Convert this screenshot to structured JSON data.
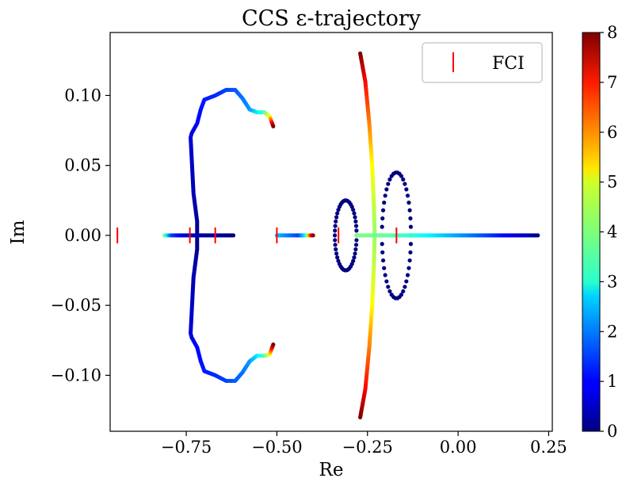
{
  "chart_data": {
    "type": "scatter",
    "title": "CCS ε-trajectory",
    "xlabel": "Re",
    "ylabel": "Im",
    "xlim": [
      -0.96,
      0.26
    ],
    "ylim": [
      -0.14,
      0.145
    ],
    "xticks": [
      {
        "value": -0.75,
        "label": "−0.75"
      },
      {
        "value": -0.5,
        "label": "−0.50"
      },
      {
        "value": -0.25,
        "label": "−0.25"
      },
      {
        "value": 0.0,
        "label": "0.00"
      },
      {
        "value": 0.25,
        "label": "0.25"
      }
    ],
    "yticks": [
      {
        "value": 0.1,
        "label": "0.10"
      },
      {
        "value": 0.05,
        "label": "0.05"
      },
      {
        "value": 0.0,
        "label": "0.00"
      },
      {
        "value": -0.05,
        "label": "−0.05"
      },
      {
        "value": -0.1,
        "label": "−0.10"
      }
    ],
    "grid": false,
    "legend": {
      "placement": "top-right",
      "entries": [
        {
          "name": "FCI",
          "marker": "red vertical bar",
          "color": "#ff0000"
        }
      ]
    },
    "colorbar": {
      "colormap": "jet",
      "range": [
        0,
        8
      ],
      "ticks": [
        {
          "value": 0,
          "label": "0"
        },
        {
          "value": 1,
          "label": "1"
        },
        {
          "value": 2,
          "label": "2"
        },
        {
          "value": 3,
          "label": "3"
        },
        {
          "value": 4,
          "label": "4"
        },
        {
          "value": 5,
          "label": "5"
        },
        {
          "value": 6,
          "label": "6"
        },
        {
          "value": 7,
          "label": "7"
        },
        {
          "value": 8,
          "label": "8"
        }
      ]
    },
    "fci_points": [
      {
        "re": -0.94,
        "im": 0.0
      },
      {
        "re": -0.74,
        "im": 0.0
      },
      {
        "re": -0.67,
        "im": 0.0
      },
      {
        "re": -0.5,
        "im": 0.0
      },
      {
        "re": -0.33,
        "im": 0.0
      },
      {
        "re": -0.17,
        "im": 0.0
      }
    ],
    "trajectories": [
      {
        "id": "left-upper",
        "points": [
          [
            -0.72,
            0.0,
            0.0
          ],
          [
            -0.72,
            0.01,
            0.2
          ],
          [
            -0.725,
            0.02,
            0.3
          ],
          [
            -0.73,
            0.03,
            0.4
          ],
          [
            -0.733,
            0.045,
            0.5
          ],
          [
            -0.736,
            0.06,
            0.6
          ],
          [
            -0.738,
            0.07,
            0.7
          ],
          [
            -0.735,
            0.073,
            0.8
          ],
          [
            -0.72,
            0.08,
            1.0
          ],
          [
            -0.71,
            0.09,
            1.1
          ],
          [
            -0.7,
            0.097,
            1.2
          ],
          [
            -0.67,
            0.1,
            1.3
          ],
          [
            -0.64,
            0.104,
            1.5
          ],
          [
            -0.615,
            0.104,
            1.7
          ],
          [
            -0.595,
            0.098,
            1.9
          ],
          [
            -0.575,
            0.09,
            2.2
          ],
          [
            -0.555,
            0.088,
            2.8
          ],
          [
            -0.535,
            0.088,
            3.6
          ],
          [
            -0.52,
            0.085,
            5.0
          ],
          [
            -0.51,
            0.078,
            8.0
          ]
        ]
      },
      {
        "id": "left-lower",
        "points": [
          [
            -0.72,
            0.0,
            0.0
          ],
          [
            -0.72,
            -0.01,
            0.2
          ],
          [
            -0.725,
            -0.02,
            0.3
          ],
          [
            -0.73,
            -0.03,
            0.4
          ],
          [
            -0.733,
            -0.045,
            0.5
          ],
          [
            -0.736,
            -0.06,
            0.6
          ],
          [
            -0.738,
            -0.07,
            0.7
          ],
          [
            -0.735,
            -0.073,
            0.8
          ],
          [
            -0.72,
            -0.08,
            1.0
          ],
          [
            -0.71,
            -0.09,
            1.1
          ],
          [
            -0.7,
            -0.097,
            1.2
          ],
          [
            -0.67,
            -0.1,
            1.3
          ],
          [
            -0.64,
            -0.104,
            1.5
          ],
          [
            -0.615,
            -0.104,
            1.7
          ],
          [
            -0.595,
            -0.098,
            1.9
          ],
          [
            -0.575,
            -0.09,
            2.2
          ],
          [
            -0.555,
            -0.086,
            2.8
          ],
          [
            -0.535,
            -0.086,
            3.6
          ],
          [
            -0.52,
            -0.085,
            5.0
          ],
          [
            -0.51,
            -0.078,
            8.0
          ]
        ]
      },
      {
        "id": "left-real-axis",
        "points": [
          [
            -0.81,
            0.0,
            4.0
          ],
          [
            -0.8,
            0.0,
            2.5
          ],
          [
            -0.79,
            0.0,
            1.5
          ],
          [
            -0.76,
            0.0,
            0.8
          ],
          [
            -0.72,
            0.0,
            0.3
          ],
          [
            -0.68,
            0.0,
            0.2
          ],
          [
            -0.64,
            0.0,
            0.1
          ],
          [
            -0.62,
            0.0,
            0.0
          ]
        ]
      },
      {
        "id": "middle-real-axis",
        "points": [
          [
            -0.5,
            0.0,
            2.5
          ],
          [
            -0.47,
            0.0,
            2.0
          ],
          [
            -0.44,
            0.0,
            1.5
          ],
          [
            -0.42,
            0.0,
            3.0
          ],
          [
            -0.41,
            0.0,
            6.0
          ],
          [
            -0.4,
            0.0,
            8.0
          ]
        ]
      },
      {
        "id": "central-arc",
        "points": [
          [
            -0.27,
            0.13,
            8.0
          ],
          [
            -0.256,
            0.11,
            7.0
          ],
          [
            -0.245,
            0.08,
            6.0
          ],
          [
            -0.237,
            0.05,
            5.0
          ],
          [
            -0.232,
            0.02,
            4.5
          ],
          [
            -0.23,
            0.0,
            4.2
          ],
          [
            -0.232,
            -0.02,
            4.5
          ],
          [
            -0.237,
            -0.05,
            5.0
          ],
          [
            -0.245,
            -0.08,
            6.0
          ],
          [
            -0.256,
            -0.11,
            7.0
          ],
          [
            -0.27,
            -0.13,
            8.0
          ]
        ]
      },
      {
        "id": "loop-left",
        "center": [
          -0.31,
          0.0
        ],
        "radius": [
          0.03,
          0.025
        ],
        "c": 0.0
      },
      {
        "id": "loop-right",
        "center": [
          -0.17,
          0.0
        ],
        "radius": [
          0.04,
          0.045
        ],
        "c": 0.0
      },
      {
        "id": "right-real-axis",
        "points": [
          [
            -0.28,
            0.0,
            4.0
          ],
          [
            -0.2,
            0.0,
            3.8
          ],
          [
            -0.12,
            0.0,
            3.3
          ],
          [
            -0.04,
            0.0,
            2.6
          ],
          [
            0.04,
            0.0,
            1.9
          ],
          [
            0.12,
            0.0,
            1.1
          ],
          [
            0.2,
            0.0,
            0.4
          ],
          [
            0.22,
            0.0,
            0.1
          ]
        ]
      }
    ]
  }
}
